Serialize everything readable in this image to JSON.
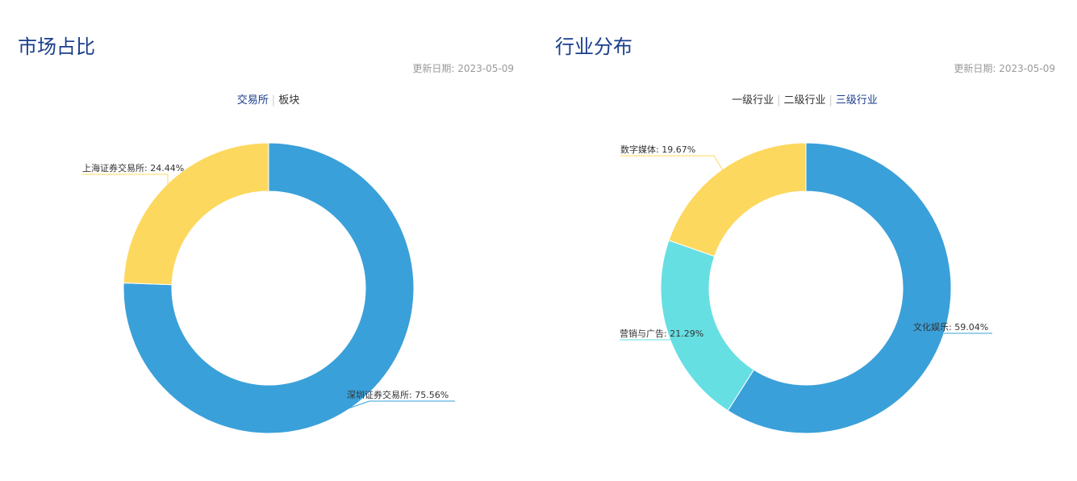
{
  "left": {
    "title": "市场占比",
    "update_text": "更新日期: 2023-05-09",
    "tabs": [
      {
        "label": "交易所",
        "active": true
      },
      {
        "label": "板块",
        "active": false
      }
    ]
  },
  "right": {
    "title": "行业分布",
    "update_text": "更新日期: 2023-05-09",
    "tabs": [
      {
        "label": "一级行业",
        "active": false
      },
      {
        "label": "二级行业",
        "active": false
      },
      {
        "label": "三级行业",
        "active": true
      }
    ]
  },
  "chart_data": [
    {
      "type": "pie",
      "donut": true,
      "slices": [
        {
          "label": "深圳证券交易所: 75.56%",
          "name": "深圳证券交易所",
          "value": 75.56,
          "color": "#3aa0d9"
        },
        {
          "label": "上海证券交易所: 24.44%",
          "name": "上海证券交易所",
          "value": 24.44,
          "color": "#fdd85f"
        }
      ]
    },
    {
      "type": "pie",
      "donut": true,
      "slices": [
        {
          "label": "文化娱乐: 59.04%",
          "name": "文化娱乐",
          "value": 59.04,
          "color": "#3aa0d9"
        },
        {
          "label": "营销与广告: 21.29%",
          "name": "营销与广告",
          "value": 21.29,
          "color": "#66dfe3"
        },
        {
          "label": "数字媒体: 19.67%",
          "name": "数字媒体",
          "value": 19.67,
          "color": "#fdd85f"
        }
      ]
    }
  ]
}
